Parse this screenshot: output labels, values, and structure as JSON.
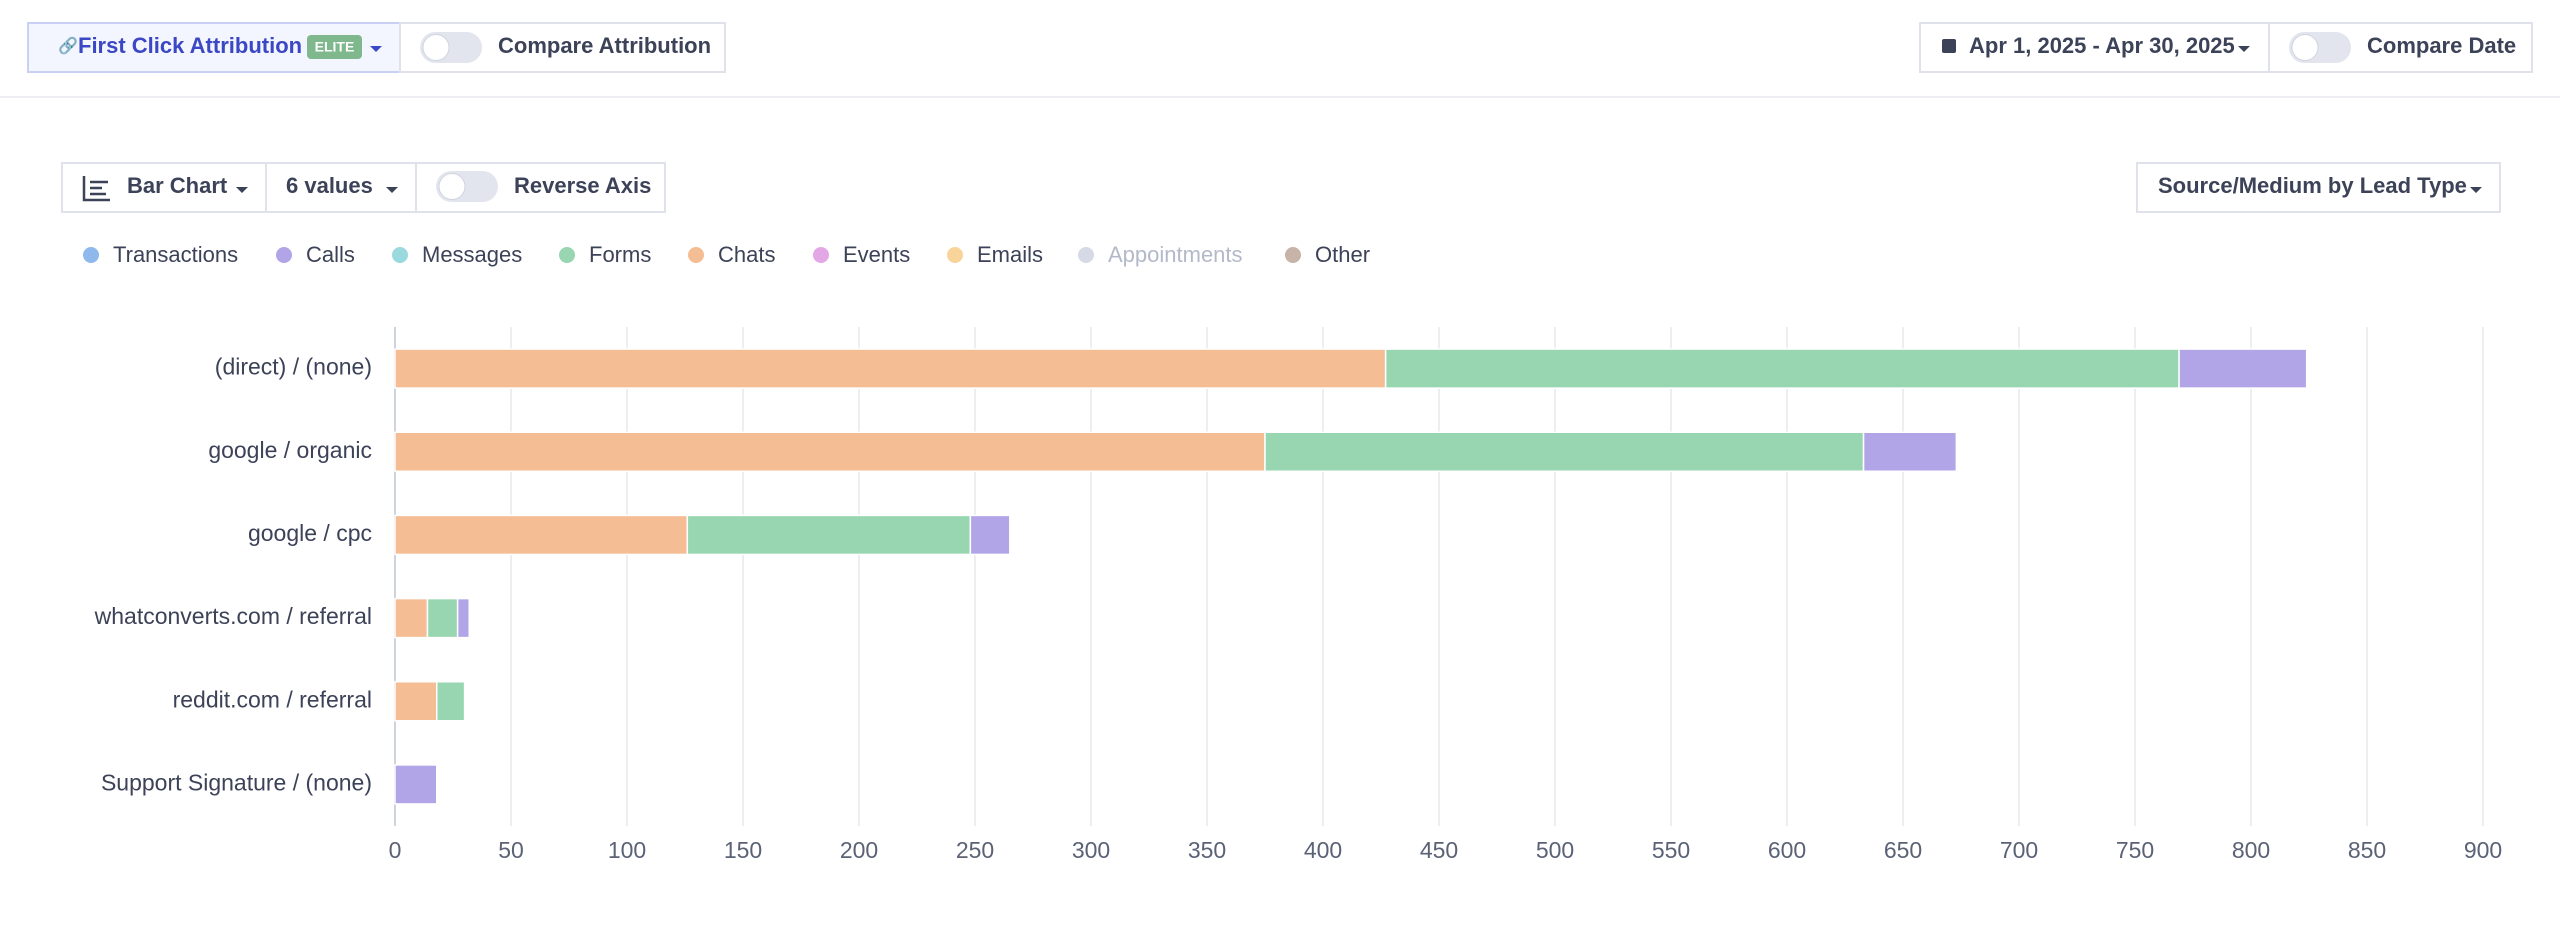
{
  "controls": {
    "attribution": "First Click Attribution",
    "badge": "ELITE",
    "compare_attribution": "Compare Attribution",
    "date_range": "Apr 1, 2025 - Apr 30, 2025",
    "compare_date": "Compare Date",
    "chart_type": "Bar Chart",
    "value_count": "6 values",
    "reverse_axis": "Reverse Axis",
    "grouping": "Source/Medium by Lead Type"
  },
  "chart_data": {
    "type": "stacked-horizontal-bar",
    "categories": [
      "(direct) / (none)",
      "google / organic",
      "google / cpc",
      "whatconverts.com / referral",
      "reddit.com / referral",
      "Support Signature / (none)"
    ],
    "series": [
      {
        "name": "Transactions",
        "color": "#8fb8ec",
        "values": [
          null,
          null,
          null,
          null,
          null,
          null
        ]
      },
      {
        "name": "Calls",
        "color": "#b1a5e8",
        "values": [
          55,
          40,
          17,
          5,
          null,
          18
        ]
      },
      {
        "name": "Messages",
        "color": "#9ad9de",
        "values": [
          null,
          null,
          null,
          null,
          null,
          null
        ]
      },
      {
        "name": "Forms",
        "color": "#97d6b0",
        "values": [
          342,
          258,
          122,
          13,
          12,
          null
        ]
      },
      {
        "name": "Chats",
        "color": "#f4bd93",
        "values": [
          427,
          375,
          126,
          14,
          18,
          null
        ]
      },
      {
        "name": "Events",
        "color": "#e3a7e6",
        "values": [
          null,
          null,
          null,
          null,
          null,
          null
        ]
      },
      {
        "name": "Emails",
        "color": "#f8d49a",
        "values": [
          null,
          null,
          null,
          null,
          null,
          null
        ]
      },
      {
        "name": "Appointments",
        "color": "#d5dae6",
        "disabled": true,
        "values": [
          null,
          null,
          null,
          null,
          null,
          null
        ]
      },
      {
        "name": "Other",
        "color": "#c7b3a8",
        "values": [
          null,
          null,
          null,
          null,
          null,
          null
        ]
      }
    ],
    "xlim": [
      0,
      900
    ],
    "xticks": [
      0,
      50,
      100,
      150,
      200,
      250,
      300,
      350,
      400,
      450,
      500,
      550,
      600,
      650,
      700,
      750,
      800,
      850,
      900
    ],
    "grid": true
  }
}
